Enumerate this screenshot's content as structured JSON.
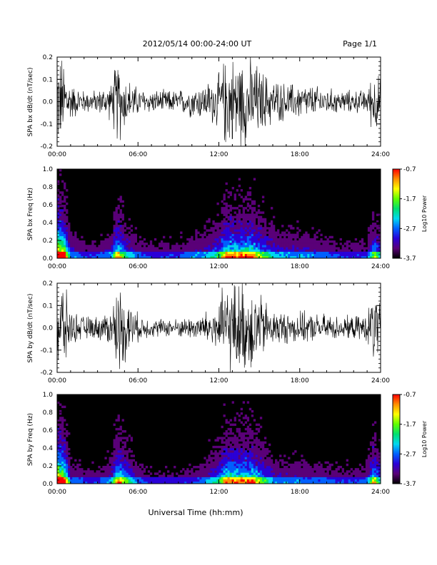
{
  "header": {
    "title": "2012/05/14  00:00-24:00 UT",
    "page": "Page 1/1"
  },
  "footer": {
    "xlabel": "Universal Time (hh:mm)"
  },
  "colors": {
    "trace": "#000000",
    "spectrogram_background": "#000000",
    "colormap": [
      "#000000",
      "#5a0078",
      "#2a00d8",
      "#0060ff",
      "#00d8f0",
      "#00e070",
      "#60ff00",
      "#ffff00",
      "#ff9000",
      "#ff0000"
    ]
  },
  "chart_data": [
    {
      "type": "line",
      "ylabel": "SPA bx dB/dt (nT/sec)",
      "ylim": [
        -0.2,
        0.2
      ],
      "yticks": [
        "0.2",
        "0.1",
        "0.0",
        "-0.1",
        "-0.2"
      ],
      "xlim": [
        0,
        24
      ],
      "xticks": [
        "00:00",
        "06:00",
        "12:00",
        "18:00",
        "24:00"
      ],
      "series": [
        {
          "x": [
            0,
            0.5,
            1,
            2,
            3,
            4,
            4.5,
            5,
            6,
            7,
            8,
            9,
            10,
            11,
            12,
            12.5,
            13,
            14,
            14.5,
            15,
            16,
            17,
            18,
            19,
            20,
            21,
            22,
            23,
            23.5,
            24
          ],
          "amplitude": [
            0.2,
            0.2,
            0.08,
            0.05,
            0.05,
            0.08,
            0.2,
            0.12,
            0.06,
            0.05,
            0.05,
            0.05,
            0.07,
            0.08,
            0.12,
            0.2,
            0.2,
            0.2,
            0.2,
            0.15,
            0.1,
            0.08,
            0.08,
            0.07,
            0.06,
            0.05,
            0.05,
            0.05,
            0.15,
            0.1
          ]
        }
      ]
    },
    {
      "type": "heatmap",
      "ylabel": "SPA bx Freq (Hz)",
      "ylim": [
        0.0,
        1.0
      ],
      "yticks": [
        "1.0",
        "0.8",
        "0.6",
        "0.4",
        "0.2",
        "0.0"
      ],
      "xlim": [
        0,
        24
      ],
      "xticks": [
        "00:00",
        "06:00",
        "12:00",
        "18:00",
        "24:00"
      ],
      "colorbar": {
        "label": "Log10 Power",
        "range": [
          -3.7,
          -0.7
        ],
        "ticks": [
          "-0.7",
          "-1.7",
          "-2.7",
          "-3.7"
        ]
      }
    },
    {
      "type": "line",
      "ylabel": "SPA by dB/dt (nT/sec)",
      "ylim": [
        -0.2,
        0.2
      ],
      "yticks": [
        "0.2",
        "0.1",
        "0.0",
        "-0.1",
        "-0.2"
      ],
      "xlim": [
        0,
        24
      ],
      "xticks": [
        "00:00",
        "06:00",
        "12:00",
        "18:00",
        "24:00"
      ],
      "series": [
        {
          "x": [
            0,
            0.5,
            1,
            2,
            3,
            4,
            4.5,
            5,
            6,
            7,
            8,
            9,
            10,
            11,
            12,
            12.5,
            13,
            14,
            14.5,
            15,
            16,
            17,
            18,
            19,
            20,
            21,
            22,
            23,
            23.5,
            24
          ],
          "amplitude": [
            0.2,
            0.2,
            0.07,
            0.05,
            0.05,
            0.08,
            0.2,
            0.15,
            0.06,
            0.04,
            0.04,
            0.04,
            0.05,
            0.07,
            0.12,
            0.2,
            0.2,
            0.2,
            0.2,
            0.15,
            0.08,
            0.07,
            0.07,
            0.06,
            0.06,
            0.05,
            0.05,
            0.06,
            0.18,
            0.1
          ]
        }
      ]
    },
    {
      "type": "heatmap",
      "ylabel": "SPA by Freq (Hz)",
      "ylim": [
        0.0,
        1.0
      ],
      "yticks": [
        "1.0",
        "0.8",
        "0.6",
        "0.4",
        "0.2",
        "0.0"
      ],
      "xlim": [
        0,
        24
      ],
      "xticks": [
        "00:00",
        "06:00",
        "12:00",
        "18:00",
        "24:00"
      ],
      "colorbar": {
        "label": "Log10 Power",
        "range": [
          -3.7,
          -0.7
        ],
        "ticks": [
          "-0.7",
          "-1.7",
          "-2.7",
          "-3.7"
        ]
      }
    }
  ]
}
